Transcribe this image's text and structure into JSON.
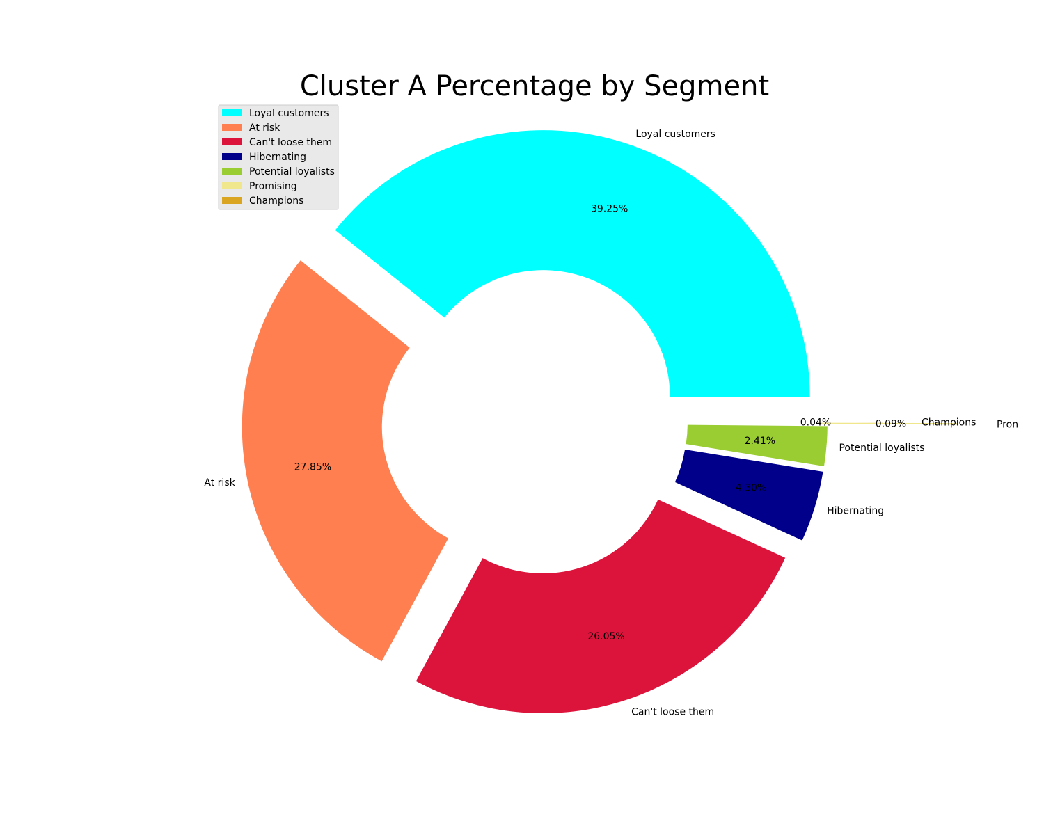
{
  "chart_data": {
    "type": "pie",
    "donut": true,
    "title": "Cluster A Percentage by Segment",
    "legend_position": "top-left",
    "slices": [
      {
        "label": "Loyal customers",
        "value": 39.25,
        "pct_label": "39.25%",
        "color": "#00FFFF"
      },
      {
        "label": "At risk",
        "value": 27.85,
        "pct_label": "27.85%",
        "color": "#FF7F50"
      },
      {
        "label": "Can't loose them",
        "value": 26.05,
        "pct_label": "26.05%",
        "color": "#DC143C"
      },
      {
        "label": "Hibernating",
        "value": 4.3,
        "pct_label": "4.30%",
        "color": "#00008B"
      },
      {
        "label": "Potential loyalists",
        "value": 2.41,
        "pct_label": "2.41%",
        "color": "#9ACD32"
      },
      {
        "label": "Promising",
        "value": 0.09,
        "pct_label": "0.09%",
        "color": "#F0E68C",
        "outer_label": "Pron"
      },
      {
        "label": "Champions",
        "value": 0.04,
        "pct_label": "0.04%",
        "color": "#DAA520"
      }
    ]
  }
}
